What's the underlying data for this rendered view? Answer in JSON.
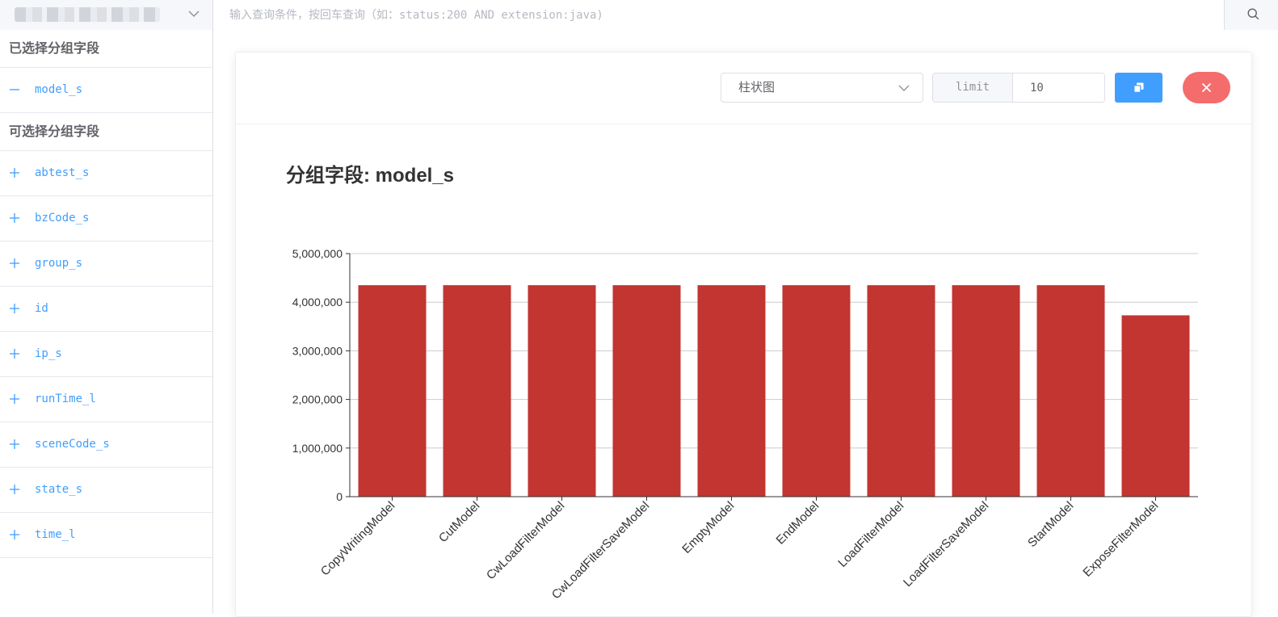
{
  "topbar": {
    "query_placeholder": "输入查询条件，按回车查询（如：status:200 AND extension:java)",
    "index_icon": "chevron-down-icon",
    "search_icon": "search-icon"
  },
  "sidebar": {
    "selected_title": "已选择分组字段",
    "selected_fields": [
      {
        "label": "model_s",
        "icon": "minus-icon"
      }
    ],
    "available_title": "可选择分组字段",
    "available_fields": [
      {
        "label": "abtest_s",
        "icon": "plus-icon"
      },
      {
        "label": "bzCode_s",
        "icon": "plus-icon"
      },
      {
        "label": "group_s",
        "icon": "plus-icon"
      },
      {
        "label": "id",
        "icon": "plus-icon"
      },
      {
        "label": "ip_s",
        "icon": "plus-icon"
      },
      {
        "label": "runTime_l",
        "icon": "plus-icon"
      },
      {
        "label": "sceneCode_s",
        "icon": "plus-icon"
      },
      {
        "label": "state_s",
        "icon": "plus-icon"
      },
      {
        "label": "time_l",
        "icon": "plus-icon"
      }
    ]
  },
  "toolbar": {
    "chart_type": "柱状图",
    "limit_label": "limit",
    "limit_value": "10",
    "copy_icon": "copy-icon",
    "close_icon": "close-icon"
  },
  "colors": {
    "bar": "#c23531",
    "primary": "#409eff",
    "danger": "#f56c6c",
    "link": "#409eff"
  },
  "chart_data": {
    "type": "bar",
    "title": "分组字段: model_s",
    "categories": [
      "CopyWritingModel",
      "CutModel",
      "CwLoadFilterModel",
      "CwLoadFilterSaveModel",
      "EmptyModel",
      "EndModel",
      "LoadFilterModel",
      "LoadFilterSaveModel",
      "StartModel",
      "ExposeFilterModel"
    ],
    "values": [
      4350000,
      4350000,
      4350000,
      4350000,
      4350000,
      4350000,
      4350000,
      4350000,
      4350000,
      3730000
    ],
    "ylim": [
      0,
      5000000
    ],
    "yticks": [
      "0",
      "1,000,000",
      "2,000,000",
      "3,000,000",
      "4,000,000",
      "5,000,000"
    ],
    "grid": true
  }
}
